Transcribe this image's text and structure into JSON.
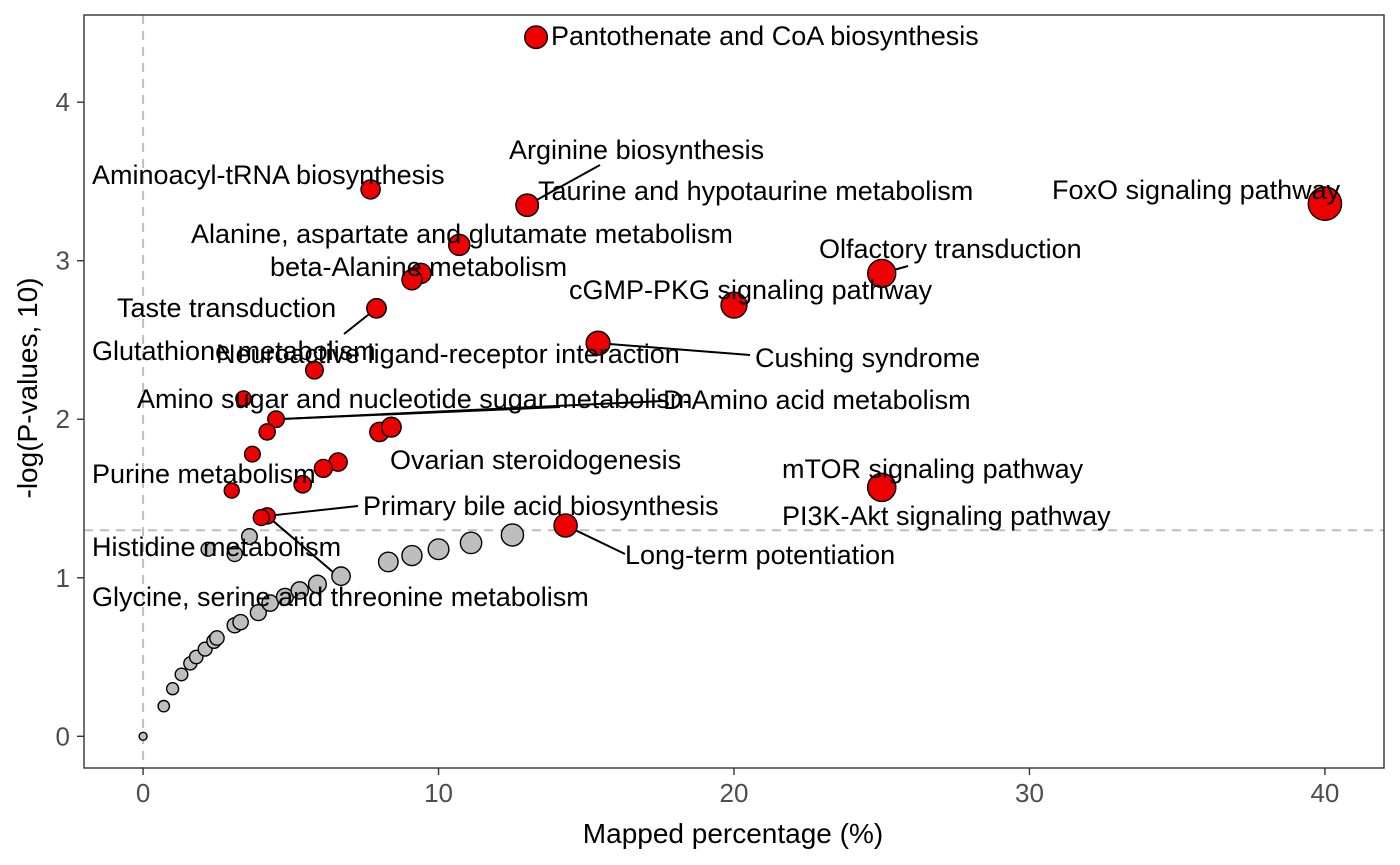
{
  "chart_data": {
    "type": "scatter",
    "title": "",
    "xlabel": "Mapped percentage (%)",
    "ylabel": "-log(P-values, 10)",
    "xlim": [
      -2,
      42
    ],
    "ylim": [
      -0.2,
      4.55
    ],
    "xticks": [
      0,
      10,
      20,
      30,
      40
    ],
    "yticks": [
      0,
      1,
      2,
      3,
      4
    ],
    "grid": false,
    "legend": "none",
    "threshold_y": 1.3,
    "reference_x": 0,
    "colors": {
      "significant": "#ee0000",
      "non_significant": "#bebebe",
      "outline": "#000000",
      "reference_line": "#bebebe"
    },
    "significant_points": [
      {
        "x": 13.3,
        "y": 4.41,
        "label": "Pantothenate and CoA biosynthesis"
      },
      {
        "x": 7.7,
        "y": 3.45,
        "label": "Aminoacyl-tRNA biosynthesis"
      },
      {
        "x": 13.0,
        "y": 3.35,
        "label": "Arginine biosynthesis"
      },
      {
        "x": 13.0,
        "y": 3.35,
        "label": "Taurine and hypotaurine metabolism"
      },
      {
        "x": 40.0,
        "y": 3.36,
        "label": "FoxO signaling pathway"
      },
      {
        "x": 10.7,
        "y": 3.1,
        "label": "Alanine, aspartate and glutamate metabolism"
      },
      {
        "x": 9.4,
        "y": 2.92,
        "label": ""
      },
      {
        "x": 9.1,
        "y": 2.88,
        "label": "beta-Alanine metabolism"
      },
      {
        "x": 25.0,
        "y": 2.92,
        "label": "Olfactory transduction"
      },
      {
        "x": 20.0,
        "y": 2.72,
        "label": "cGMP-PKG signaling pathway"
      },
      {
        "x": 7.9,
        "y": 2.7,
        "label": "Taste transduction"
      },
      {
        "x": 7.9,
        "y": 2.7,
        "label": "Glutathione metabolism"
      },
      {
        "x": 15.4,
        "y": 2.48,
        "label": "Neuroactive ligand-receptor interaction"
      },
      {
        "x": 15.4,
        "y": 2.48,
        "label": "Cushing syndrome"
      },
      {
        "x": 5.8,
        "y": 2.31,
        "label": ""
      },
      {
        "x": 3.4,
        "y": 2.13,
        "label": "Amino sugar and nucleotide sugar metabolism"
      },
      {
        "x": 4.5,
        "y": 2.0,
        "label": "D-Amino acid metabolism"
      },
      {
        "x": 4.2,
        "y": 1.92,
        "label": ""
      },
      {
        "x": 8.0,
        "y": 1.92,
        "label": ""
      },
      {
        "x": 8.4,
        "y": 1.95,
        "label": ""
      },
      {
        "x": 8.4,
        "y": 1.95,
        "label": "Ovarian steroidogenesis"
      },
      {
        "x": 3.7,
        "y": 1.78,
        "label": ""
      },
      {
        "x": 6.6,
        "y": 1.73,
        "label": ""
      },
      {
        "x": 6.1,
        "y": 1.69,
        "label": ""
      },
      {
        "x": 5.4,
        "y": 1.59,
        "label": "Purine metabolism"
      },
      {
        "x": 3.0,
        "y": 1.55,
        "label": ""
      },
      {
        "x": 25.0,
        "y": 1.57,
        "label": "mTOR signaling pathway"
      },
      {
        "x": 25.0,
        "y": 1.57,
        "label": "PI3K-Akt signaling pathway"
      },
      {
        "x": 4.2,
        "y": 1.39,
        "label": "Primary bile acid biosynthesis"
      },
      {
        "x": 4.0,
        "y": 1.38,
        "label": ""
      },
      {
        "x": 14.3,
        "y": 1.33,
        "label": "Long-term potentiation"
      }
    ],
    "non_significant_points": [
      {
        "x": 0.0,
        "y": 0.0,
        "label": ""
      },
      {
        "x": 0.7,
        "y": 0.19,
        "label": ""
      },
      {
        "x": 1.0,
        "y": 0.3,
        "label": ""
      },
      {
        "x": 1.3,
        "y": 0.39,
        "label": ""
      },
      {
        "x": 1.6,
        "y": 0.46,
        "label": ""
      },
      {
        "x": 1.8,
        "y": 0.5,
        "label": ""
      },
      {
        "x": 2.1,
        "y": 0.55,
        "label": ""
      },
      {
        "x": 2.4,
        "y": 0.6,
        "label": ""
      },
      {
        "x": 2.5,
        "y": 0.62,
        "label": ""
      },
      {
        "x": 3.1,
        "y": 0.7,
        "label": ""
      },
      {
        "x": 3.3,
        "y": 0.72,
        "label": ""
      },
      {
        "x": 3.9,
        "y": 0.78,
        "label": ""
      },
      {
        "x": 4.3,
        "y": 0.84,
        "label": ""
      },
      {
        "x": 4.8,
        "y": 0.88,
        "label": ""
      },
      {
        "x": 5.3,
        "y": 0.92,
        "label": ""
      },
      {
        "x": 5.9,
        "y": 0.96,
        "label": ""
      },
      {
        "x": 6.7,
        "y": 1.01,
        "label": "Glycine, serine and threonine metabolism"
      },
      {
        "x": 8.3,
        "y": 1.1,
        "label": ""
      },
      {
        "x": 9.1,
        "y": 1.14,
        "label": ""
      },
      {
        "x": 10.0,
        "y": 1.18,
        "label": ""
      },
      {
        "x": 11.1,
        "y": 1.22,
        "label": ""
      },
      {
        "x": 12.5,
        "y": 1.27,
        "label": ""
      },
      {
        "x": 2.2,
        "y": 1.18,
        "label": "Histidine metabolism"
      },
      {
        "x": 3.1,
        "y": 1.15,
        "label": ""
      },
      {
        "x": 3.6,
        "y": 1.26,
        "label": ""
      }
    ]
  }
}
